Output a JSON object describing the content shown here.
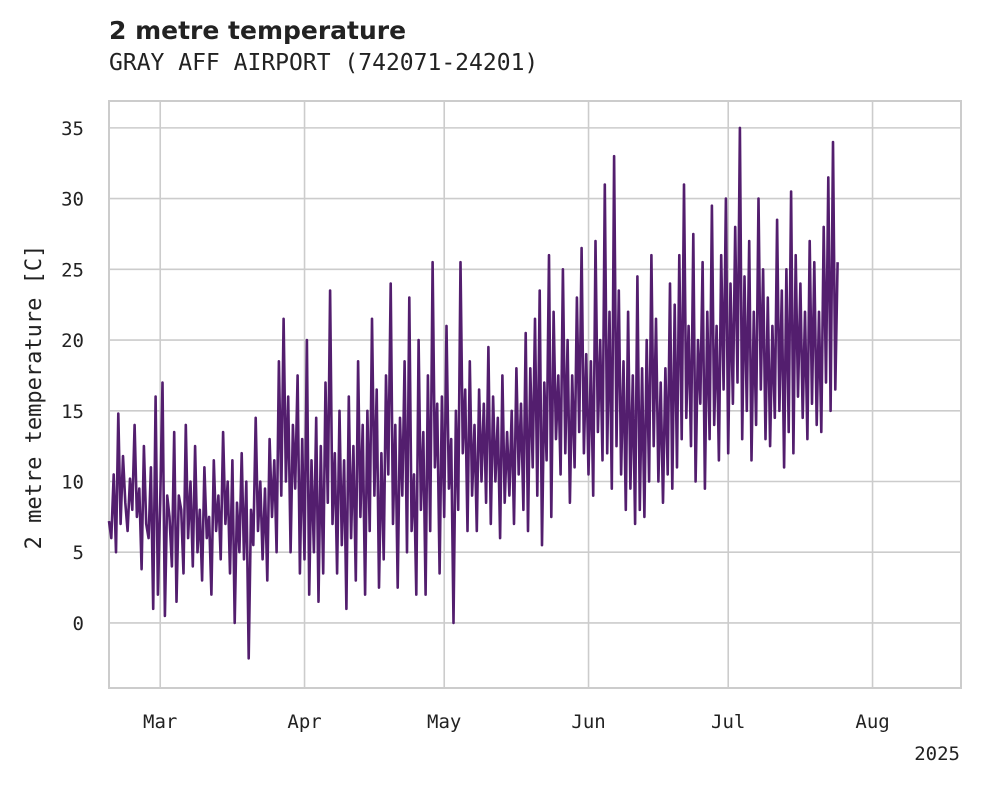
{
  "chart_data": {
    "type": "line",
    "title": "2 metre temperature",
    "subtitle": "GRAY AFF AIRPORT (742071-24201)",
    "xlabel": "",
    "ylabel": "2 metre temperature [C]",
    "xlim": [
      "2025-02-18",
      "2025-08-20"
    ],
    "ylim": [
      -4.6,
      36.9
    ],
    "yticks": [
      0,
      5,
      10,
      15,
      20,
      25,
      30,
      35
    ],
    "xticks": [
      {
        "date": "2025-03-01",
        "label": "Mar"
      },
      {
        "date": "2025-04-01",
        "label": "Apr"
      },
      {
        "date": "2025-05-01",
        "label": "May"
      },
      {
        "date": "2025-06-01",
        "label": "Jun"
      },
      {
        "date": "2025-07-01",
        "label": "Jul"
      },
      {
        "date": "2025-08-01",
        "label": "Aug"
      }
    ],
    "year_label": "2025",
    "grid": true,
    "color": "#531e6e",
    "series": [
      {
        "name": "",
        "x_start": "2025-02-18",
        "x_step_hours": 12,
        "values": [
          7.2,
          6.0,
          10.5,
          5.0,
          14.8,
          7.0,
          11.8,
          8.5,
          6.5,
          10.2,
          8.0,
          14.0,
          7.5,
          9.5,
          3.8,
          12.5,
          7.0,
          6.0,
          11.0,
          1.0,
          16.0,
          2.0,
          8.5,
          17.0,
          0.5,
          9.0,
          7.5,
          4.0,
          13.5,
          1.5,
          9.0,
          8.0,
          3.5,
          14.0,
          6.0,
          10.0,
          4.0,
          12.5,
          5.0,
          8.0,
          3.0,
          11.0,
          6.0,
          7.5,
          2.0,
          11.5,
          6.5,
          9.0,
          4.5,
          13.5,
          7.0,
          10.0,
          3.5,
          11.5,
          0.0,
          8.5,
          5.0,
          12.0,
          4.5,
          10.0,
          -2.5,
          8.0,
          5.5,
          14.5,
          6.5,
          10.0,
          4.5,
          9.5,
          3.0,
          13.0,
          7.5,
          11.5,
          5.0,
          18.5,
          9.0,
          21.5,
          10.0,
          16.0,
          5.0,
          14.0,
          9.5,
          17.5,
          3.5,
          13.0,
          4.5,
          20.0,
          2.0,
          11.5,
          5.0,
          14.5,
          1.5,
          12.5,
          3.5,
          17.0,
          8.5,
          23.5,
          7.0,
          12.0,
          3.5,
          15.0,
          5.5,
          11.5,
          1.0,
          16.0,
          6.0,
          12.5,
          3.0,
          18.5,
          7.5,
          14.0,
          2.0,
          15.0,
          6.5,
          21.5,
          9.0,
          16.5,
          2.5,
          12.0,
          4.5,
          17.5,
          10.5,
          24.0,
          7.0,
          14.0,
          2.5,
          14.5,
          9.0,
          18.5,
          5.0,
          23.0,
          6.5,
          10.5,
          2.0,
          20.0,
          8.0,
          13.5,
          2.0,
          17.5,
          6.5,
          25.5,
          11.0,
          15.5,
          3.5,
          16.0,
          7.5,
          21.0,
          9.5,
          13.0,
          0.0,
          15.0,
          8.0,
          25.5,
          12.0,
          16.5,
          6.5,
          18.5,
          9.0,
          14.0,
          6.5,
          16.5,
          10.0,
          15.5,
          8.5,
          19.5,
          7.0,
          16.0,
          10.0,
          14.5,
          6.0,
          17.5,
          8.5,
          13.5,
          9.0,
          15.0,
          7.0,
          18.0,
          10.5,
          15.5,
          8.0,
          20.5,
          6.5,
          18.0,
          11.0,
          21.5,
          9.0,
          23.5,
          5.5,
          17.0,
          11.5,
          26.0,
          7.5,
          22.0,
          13.0,
          17.5,
          10.5,
          25.0,
          12.0,
          20.0,
          8.5,
          17.5,
          11.0,
          23.0,
          13.5,
          26.5,
          12.0,
          19.0,
          10.5,
          18.5,
          9.0,
          27.0,
          13.5,
          20.0,
          11.5,
          31.0,
          12.0,
          22.0,
          9.5,
          33.0,
          12.5,
          23.5,
          10.5,
          18.5,
          8.0,
          22.0,
          9.5,
          17.5,
          7.0,
          24.5,
          8.0,
          18.0,
          7.5,
          20.0,
          10.0,
          26.0,
          12.5,
          21.5,
          10.0,
          17.0,
          8.5,
          18.0,
          10.5,
          24.0,
          9.5,
          22.5,
          11.0,
          26.0,
          13.0,
          31.0,
          14.5,
          21.0,
          12.5,
          27.5,
          10.0,
          20.0,
          15.5,
          25.5,
          9.5,
          22.0,
          13.0,
          29.5,
          14.0,
          21.0,
          11.5,
          26.0,
          16.5,
          30.0,
          12.0,
          24.0,
          15.5,
          28.0,
          17.0,
          35.0,
          13.0,
          24.5,
          15.0,
          27.0,
          11.5,
          22.0,
          14.0,
          30.0,
          16.5,
          25.0,
          13.0,
          23.0,
          12.5,
          21.0,
          14.5,
          28.5,
          15.0,
          23.5,
          11.0,
          25.0,
          13.5,
          30.5,
          12.0,
          26.0,
          16.0,
          24.0,
          14.5,
          22.0,
          13.0,
          27.0,
          15.5,
          25.5,
          14.0,
          22.0,
          13.5,
          28.0,
          17.0,
          31.5,
          15.0,
          34.0,
          16.5,
          25.5
        ]
      }
    ]
  }
}
